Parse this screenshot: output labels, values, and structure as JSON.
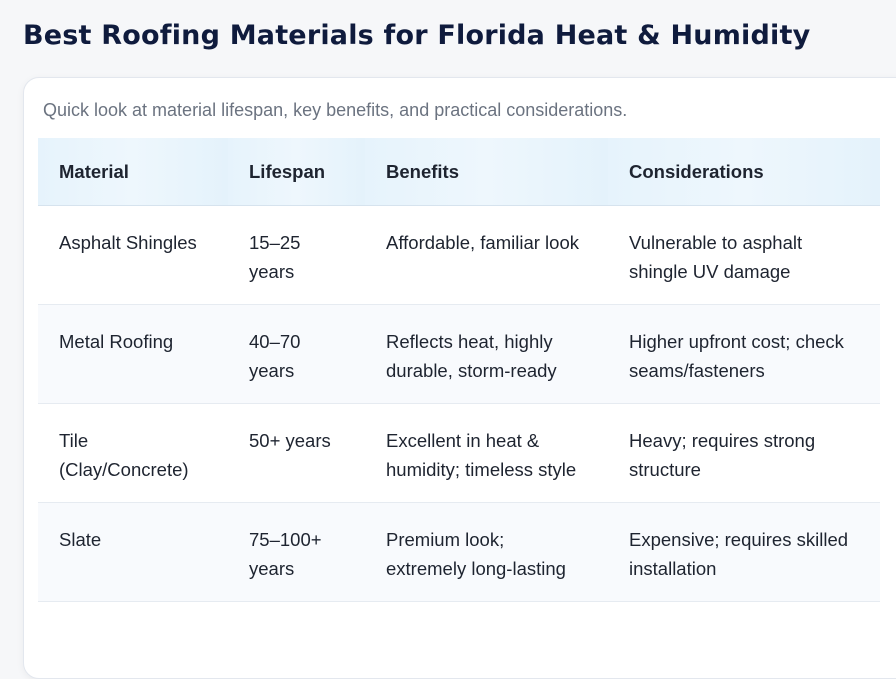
{
  "header": {
    "title": "Best Roofing Materials for Florida Heat & Humidity",
    "subtitle": "Quick look at material lifespan, key benefits, and practical considerations."
  },
  "table": {
    "columns": [
      "Material",
      "Lifespan",
      "Benefits",
      "Considerations"
    ],
    "rows": [
      [
        "Asphalt Shingles",
        "15–25 years",
        "Affordable, familiar look",
        "Vulnerable to asphalt shingle UV damage"
      ],
      [
        "Metal Roofing",
        "40–70 years",
        "Reflects heat, highly durable, storm-ready",
        "Higher upfront cost; check seams/fasteners"
      ],
      [
        "Tile (Clay/Concrete)",
        "50+ years",
        "Excellent in heat & humidity; timeless style",
        "Heavy; requires strong structure"
      ],
      [
        "Slate",
        "75–100+ years",
        "Premium look; extremely long-lasting",
        "Expensive; requires skilled installation"
      ]
    ]
  }
}
